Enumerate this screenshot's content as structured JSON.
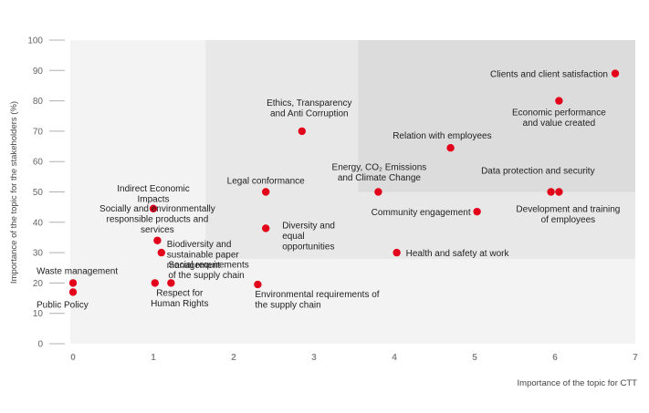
{
  "chart_data": {
    "type": "scatter",
    "title": "",
    "xlabel": "Importance of the topic for CTT",
    "ylabel": "Importance of the topic for the stakeholders (%)",
    "xlim": [
      0,
      7
    ],
    "ylim": [
      0,
      100
    ],
    "x_ticks": [
      "0",
      "1",
      "2",
      "3",
      "4",
      "5",
      "6",
      "7"
    ],
    "y_ticks": [
      "0",
      "10",
      "20",
      "30",
      "40",
      "50",
      "60",
      "70",
      "80",
      "90",
      "100"
    ],
    "grid": false,
    "legend": "none",
    "colors": {
      "point": "#e2001a",
      "zone_low": "#f3f3f3",
      "zone_mid": "#e8e8e8",
      "zone_high": "#dcdcdc"
    },
    "zones": [
      {
        "level": "low",
        "x": [
          0,
          7
        ],
        "y": [
          0,
          100
        ]
      },
      {
        "level": "mid",
        "x": [
          1.65,
          7
        ],
        "y": [
          28,
          100
        ]
      },
      {
        "level": "high",
        "x": [
          3.55,
          7
        ],
        "y": [
          50,
          100
        ]
      }
    ],
    "points": [
      {
        "label": "Clients and client satisfaction",
        "x": 6.75,
        "y": 89
      },
      {
        "label": "Economic performance and value created",
        "x": 6.05,
        "y": 80
      },
      {
        "label": "Ethics, Transparency and Anti Corruption",
        "x": 2.85,
        "y": 70
      },
      {
        "label": "Relation with employees",
        "x": 4.7,
        "y": 64.5
      },
      {
        "label": "Energy, CO₂ Emissions and Climate Change",
        "x": 3.8,
        "y": 50
      },
      {
        "label": "Data protection and security",
        "x": 5.95,
        "y": 50
      },
      {
        "label": "Development and training of employees",
        "x": 6.05,
        "y": 50
      },
      {
        "label": "Legal conformance",
        "x": 2.4,
        "y": 50
      },
      {
        "label": "Indirect Economic Impacts",
        "x": 1.0,
        "y": 44.5
      },
      {
        "label": "Community engagement",
        "x": 5.03,
        "y": 43.5
      },
      {
        "label": "Diversity and equal opportunities",
        "x": 2.4,
        "y": 38
      },
      {
        "label": "Socially and environmentally responsible products and services",
        "x": 1.05,
        "y": 34
      },
      {
        "label": "Biodiversity and sustainable paper management",
        "x": 1.1,
        "y": 30
      },
      {
        "label": "Health and safety at work",
        "x": 4.03,
        "y": 30
      },
      {
        "label": "Waste management",
        "x": 0.0,
        "y": 20
      },
      {
        "label": "Public Policy",
        "x": 0.0,
        "y": 17
      },
      {
        "label": "Respect for Human Rights",
        "x": 1.02,
        "y": 20
      },
      {
        "label": "Social requirements of the supply chain",
        "x": 1.22,
        "y": 20
      },
      {
        "label": "Environmental requirements of the supply chain",
        "x": 2.3,
        "y": 19.5
      }
    ]
  }
}
